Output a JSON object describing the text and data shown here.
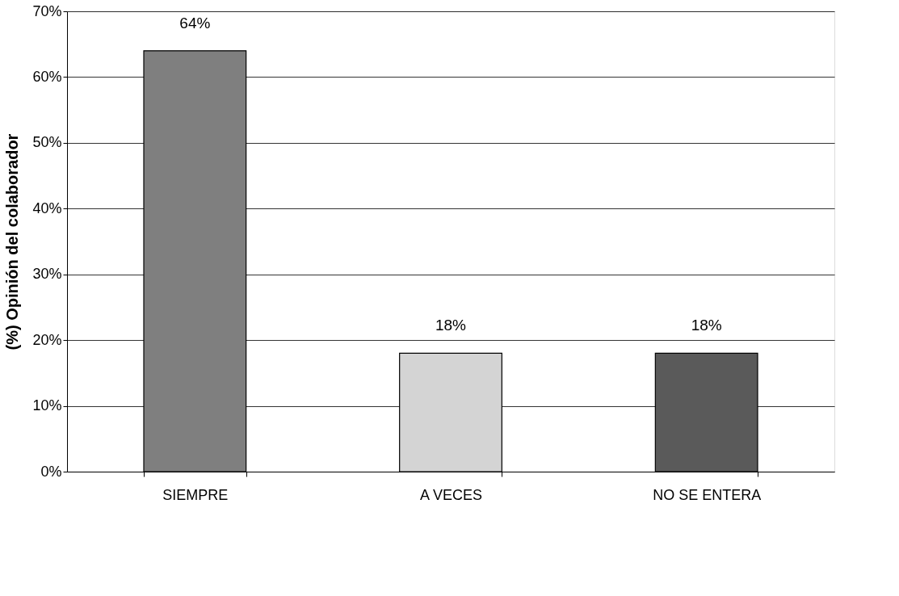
{
  "chart_data": {
    "type": "bar",
    "ylabel": "(%) Opinión del colaborador",
    "categories": [
      "SIEMPRE",
      "A VECES",
      "NO SE ENTERA"
    ],
    "values": [
      64,
      18,
      18
    ],
    "colors": [
      "#7f7f7f",
      "#d4d4d4",
      "#5a5a5a"
    ],
    "value_labels": [
      "64%",
      "18%",
      "18%"
    ],
    "ylim": [
      0,
      70
    ],
    "yticks": [
      {
        "value": 0,
        "label": "0%"
      },
      {
        "value": 10,
        "label": "10%"
      },
      {
        "value": 20,
        "label": "20%"
      },
      {
        "value": 30,
        "label": "30%"
      },
      {
        "value": 40,
        "label": "40%"
      },
      {
        "value": 50,
        "label": "50%"
      },
      {
        "value": 60,
        "label": "60%"
      },
      {
        "value": 70,
        "label": "70%"
      }
    ],
    "grid": "y"
  }
}
